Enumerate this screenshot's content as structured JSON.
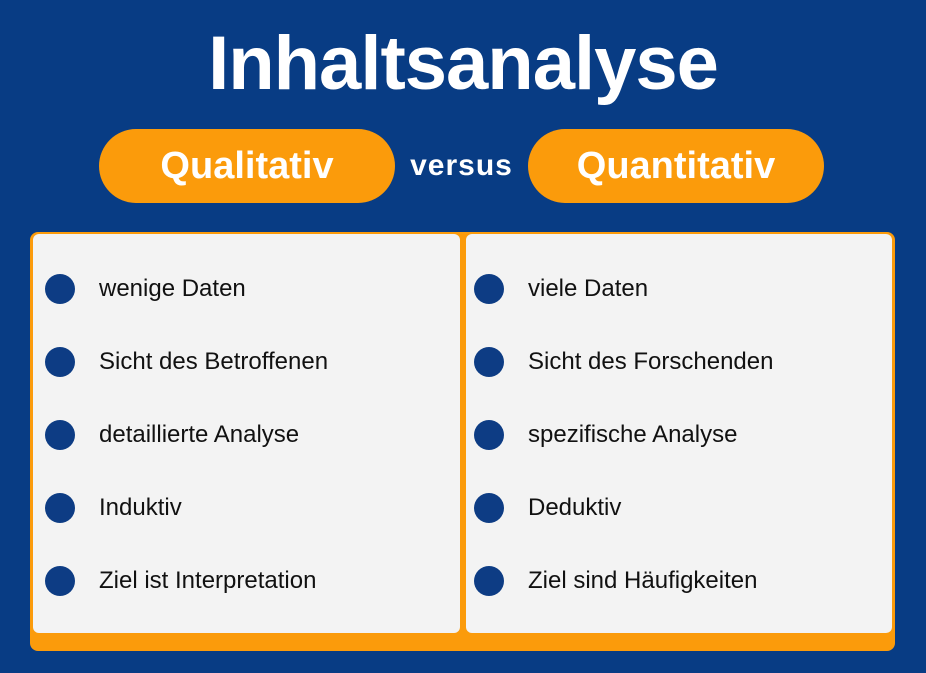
{
  "title": "Inhaltsanalyse",
  "comparison": {
    "left_label": "Qualitativ",
    "connector": "versus",
    "right_label": "Quantitativ"
  },
  "left_items": [
    "wenige Daten",
    "Sicht des Betroffenen",
    "detaillierte Analyse",
    "Induktiv",
    "Ziel ist Interpretation"
  ],
  "right_items": [
    "viele Daten",
    "Sicht des Forschenden",
    "spezifische Analyse",
    "Deduktiv",
    "Ziel sind Häufigkeiten"
  ],
  "colors": {
    "background": "#083c84",
    "accent": "#fb9b0b",
    "card": "#f3f3f3",
    "bullet": "#0d3c84"
  }
}
